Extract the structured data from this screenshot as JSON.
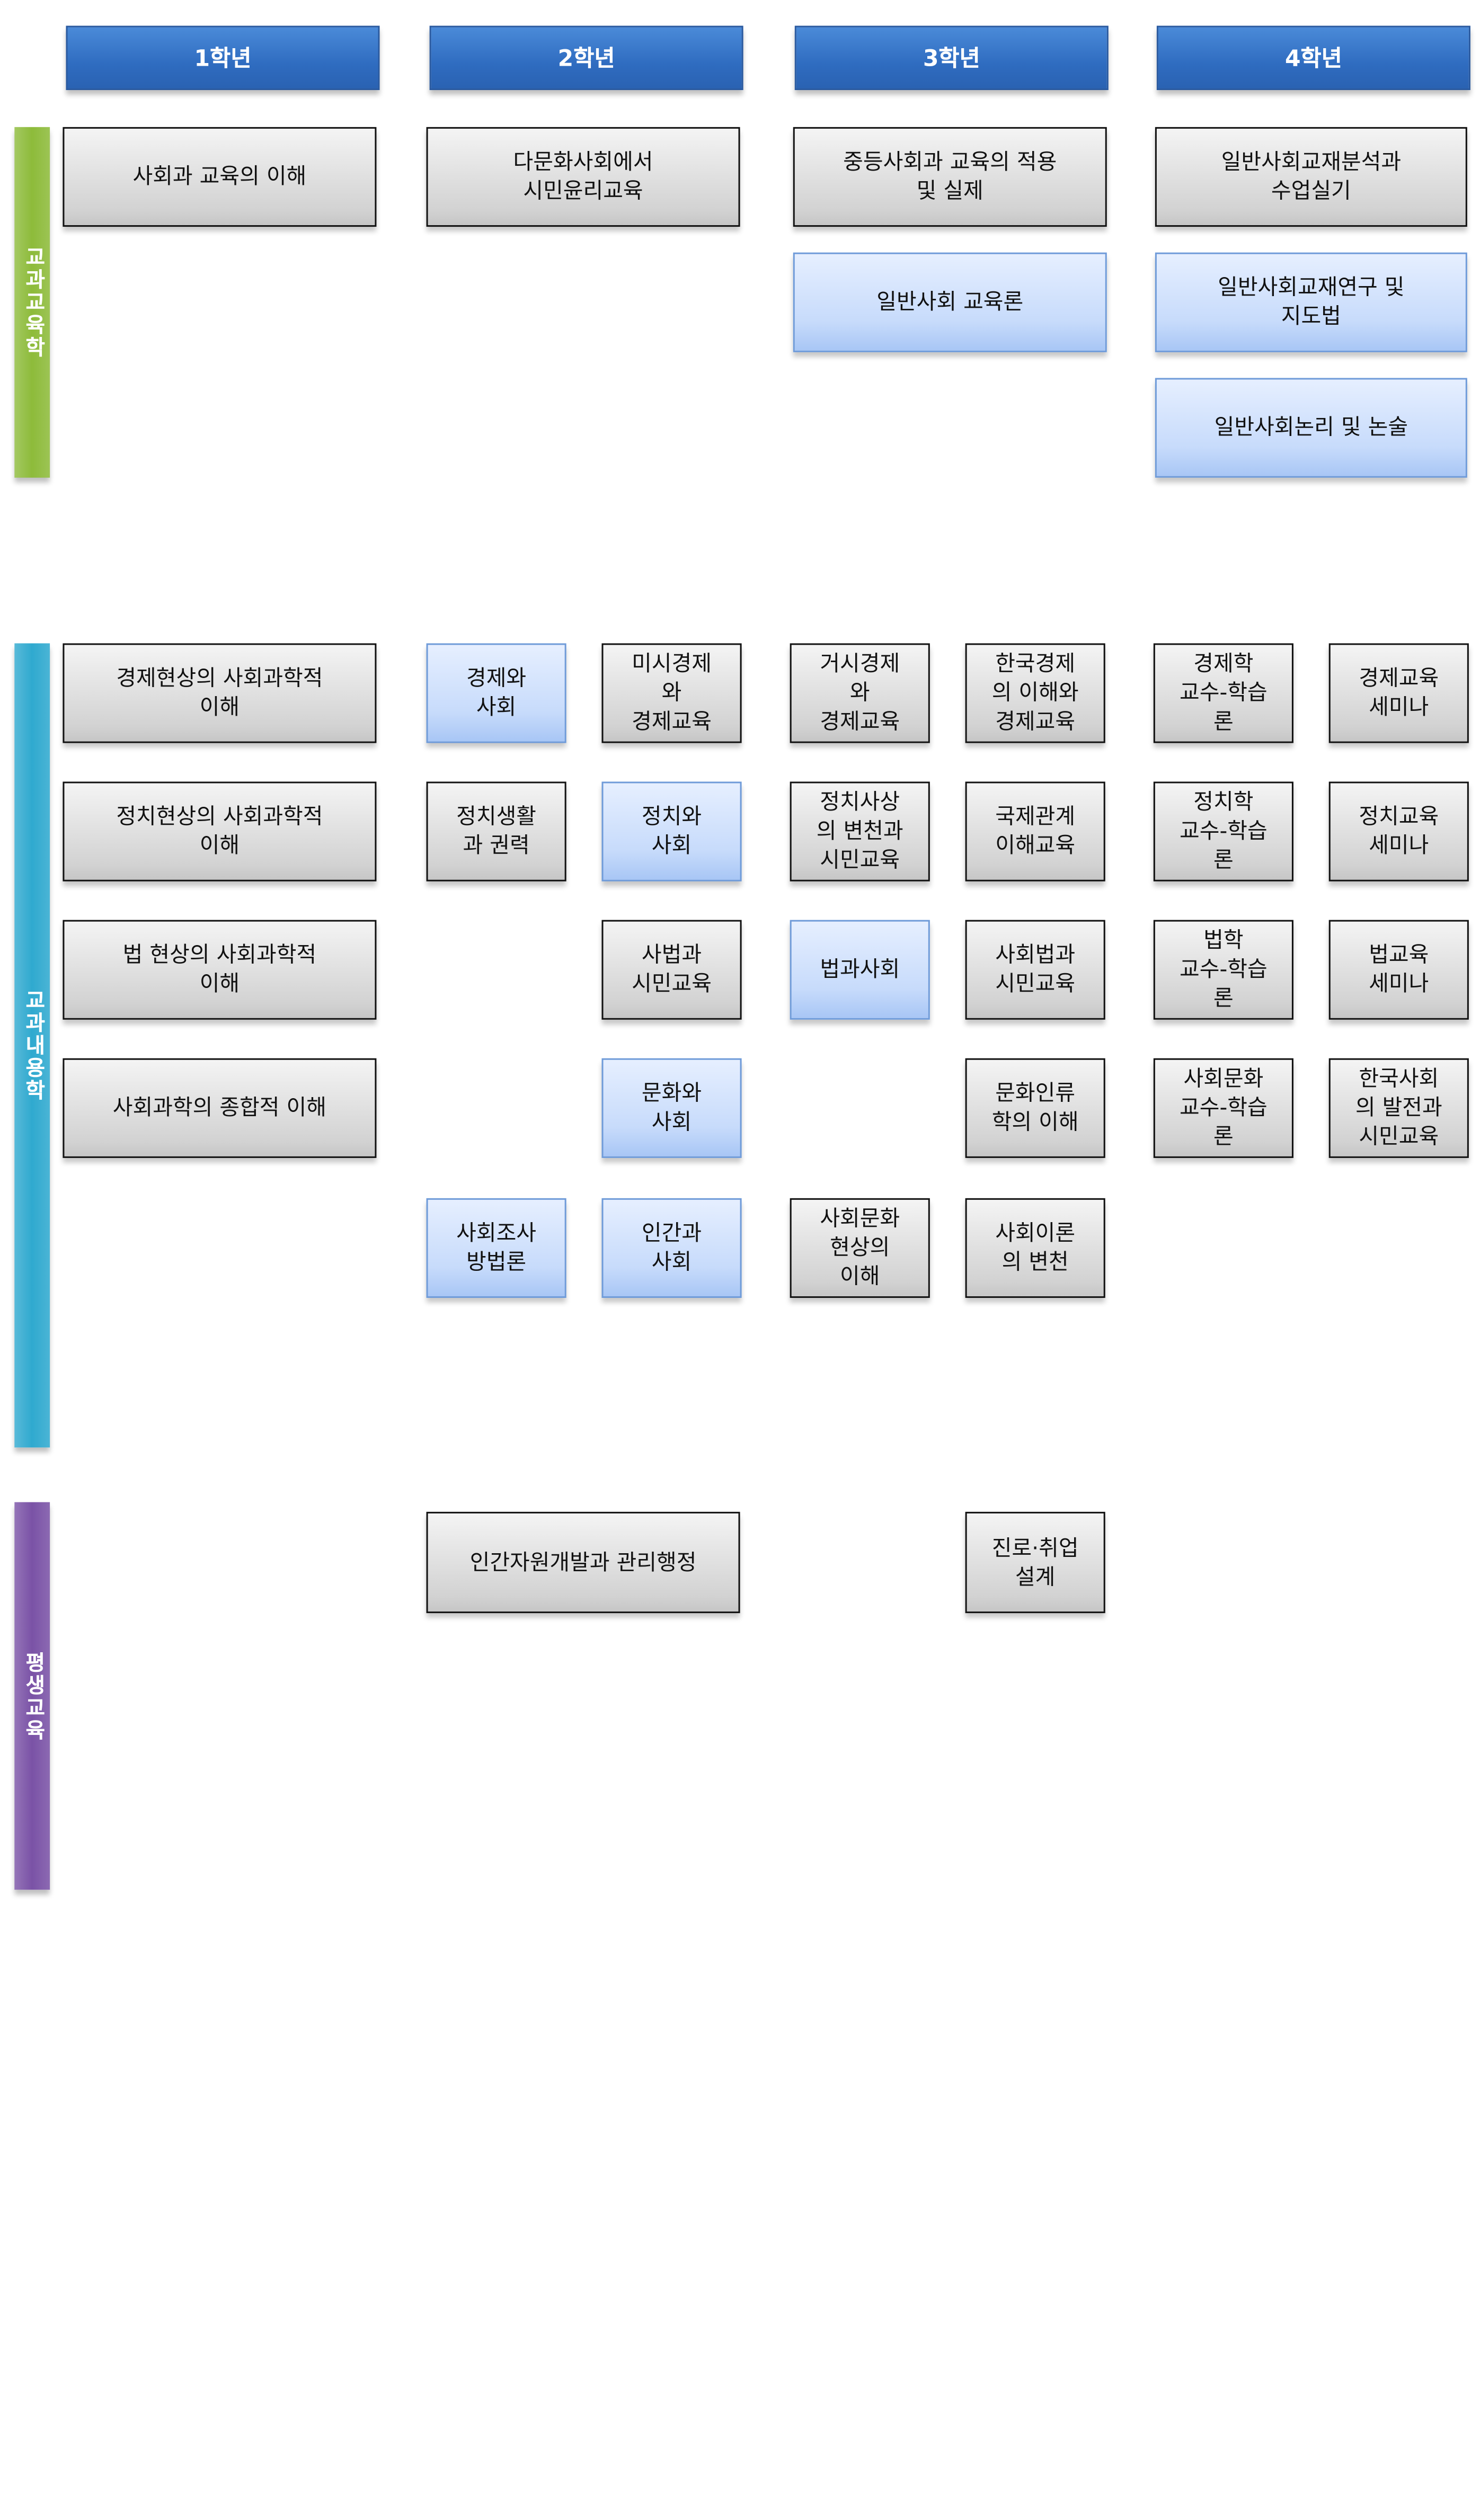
{
  "headers": [
    "1학년",
    "2학년",
    "3학년",
    "4학년"
  ],
  "sections": [
    {
      "label": "교과교육학",
      "color": "#8dbb3a"
    },
    {
      "label": "교과내용학",
      "color": "#2fa9cf"
    },
    {
      "label": "평생교육",
      "color": "#7a52a6"
    }
  ],
  "box_colors": {
    "required": "#d6d6d6",
    "highlighted": "#c7dbfb"
  },
  "courses": [
    {
      "text": "사회과 교육의 이해",
      "style": "gray"
    },
    {
      "text": "다문화사회에서\n시민윤리교육",
      "style": "gray"
    },
    {
      "text": "중등사회과 교육의 적용\n및 실제",
      "style": "gray"
    },
    {
      "text": "일반사회교재분석과\n수업실기",
      "style": "gray"
    },
    {
      "text": "일반사회 교육론",
      "style": "blue"
    },
    {
      "text": "일반사회교재연구 및\n지도법",
      "style": "blue"
    },
    {
      "text": "일반사회논리 및 논술",
      "style": "blue"
    },
    {
      "text": "경제현상의 사회과학적\n이해",
      "style": "gray"
    },
    {
      "text": "경제와\n사회",
      "style": "blue"
    },
    {
      "text": "미시경제\n와\n경제교육",
      "style": "gray"
    },
    {
      "text": "거시경제\n와\n경제교육",
      "style": "gray"
    },
    {
      "text": "한국경제\n의 이해와\n경제교육",
      "style": "gray"
    },
    {
      "text": "경제학\n교수-학습\n론",
      "style": "gray"
    },
    {
      "text": "경제교육\n세미나",
      "style": "gray"
    },
    {
      "text": "정치현상의 사회과학적\n이해",
      "style": "gray"
    },
    {
      "text": "정치생활\n과 권력",
      "style": "gray"
    },
    {
      "text": "정치와\n사회",
      "style": "blue"
    },
    {
      "text": "정치사상\n의 변천과\n시민교육",
      "style": "gray"
    },
    {
      "text": "국제관계\n이해교육",
      "style": "gray"
    },
    {
      "text": "정치학\n교수-학습\n론",
      "style": "gray"
    },
    {
      "text": "정치교육\n세미나",
      "style": "gray"
    },
    {
      "text": "법 현상의 사회과학적\n이해",
      "style": "gray"
    },
    {
      "text": "사법과\n시민교육",
      "style": "gray"
    },
    {
      "text": "법과사회",
      "style": "blue"
    },
    {
      "text": "사회법과\n시민교육",
      "style": "gray"
    },
    {
      "text": "법학\n교수-학습\n론",
      "style": "gray"
    },
    {
      "text": "법교육\n세미나",
      "style": "gray"
    },
    {
      "text": "사회과학의 종합적 이해",
      "style": "gray"
    },
    {
      "text": "문화와\n사회",
      "style": "blue"
    },
    {
      "text": "문화인류\n학의 이해",
      "style": "gray"
    },
    {
      "text": "사회문화\n교수-학습\n론",
      "style": "gray"
    },
    {
      "text": "한국사회\n의 발전과\n시민교육",
      "style": "gray"
    },
    {
      "text": "사회조사\n방법론",
      "style": "blue"
    },
    {
      "text": "인간과\n사회",
      "style": "blue"
    },
    {
      "text": "사회문화\n현상의\n이해",
      "style": "gray"
    },
    {
      "text": "사회이론\n의 변천",
      "style": "gray"
    },
    {
      "text": "인간자원개발과 관리행정",
      "style": "gray"
    },
    {
      "text": "진로·취업\n설계",
      "style": "gray"
    }
  ]
}
